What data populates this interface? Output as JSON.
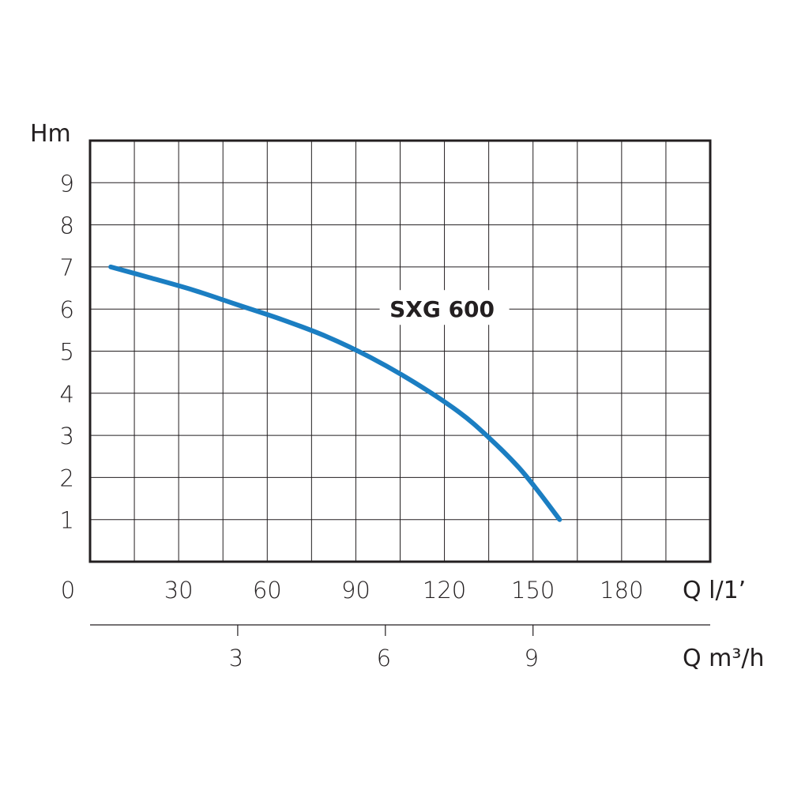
{
  "chart_data": {
    "type": "line",
    "title": "",
    "ylabel": "Hm",
    "xlabel": "Q l/1’",
    "xlabel_secondary": "Q m³/h",
    "xlim": [
      0,
      210
    ],
    "ylim": [
      0,
      10
    ],
    "x_ticks": [
      0,
      30,
      60,
      90,
      120,
      150,
      180
    ],
    "y_ticks": [
      1,
      2,
      3,
      4,
      5,
      6,
      7,
      8,
      9
    ],
    "x2_ticks": [
      3,
      6,
      9
    ],
    "x2_units_per_x": 0.06,
    "grid": true,
    "series": [
      {
        "name": "SXG 600",
        "color": "#1b7ec2",
        "x": [
          7,
          20,
          35,
          50,
          65,
          80,
          95,
          110,
          125,
          135,
          145,
          152,
          159
        ],
        "y": [
          7.0,
          6.75,
          6.45,
          6.1,
          5.75,
          5.35,
          4.85,
          4.25,
          3.55,
          2.95,
          2.25,
          1.65,
          1.0
        ]
      }
    ]
  }
}
